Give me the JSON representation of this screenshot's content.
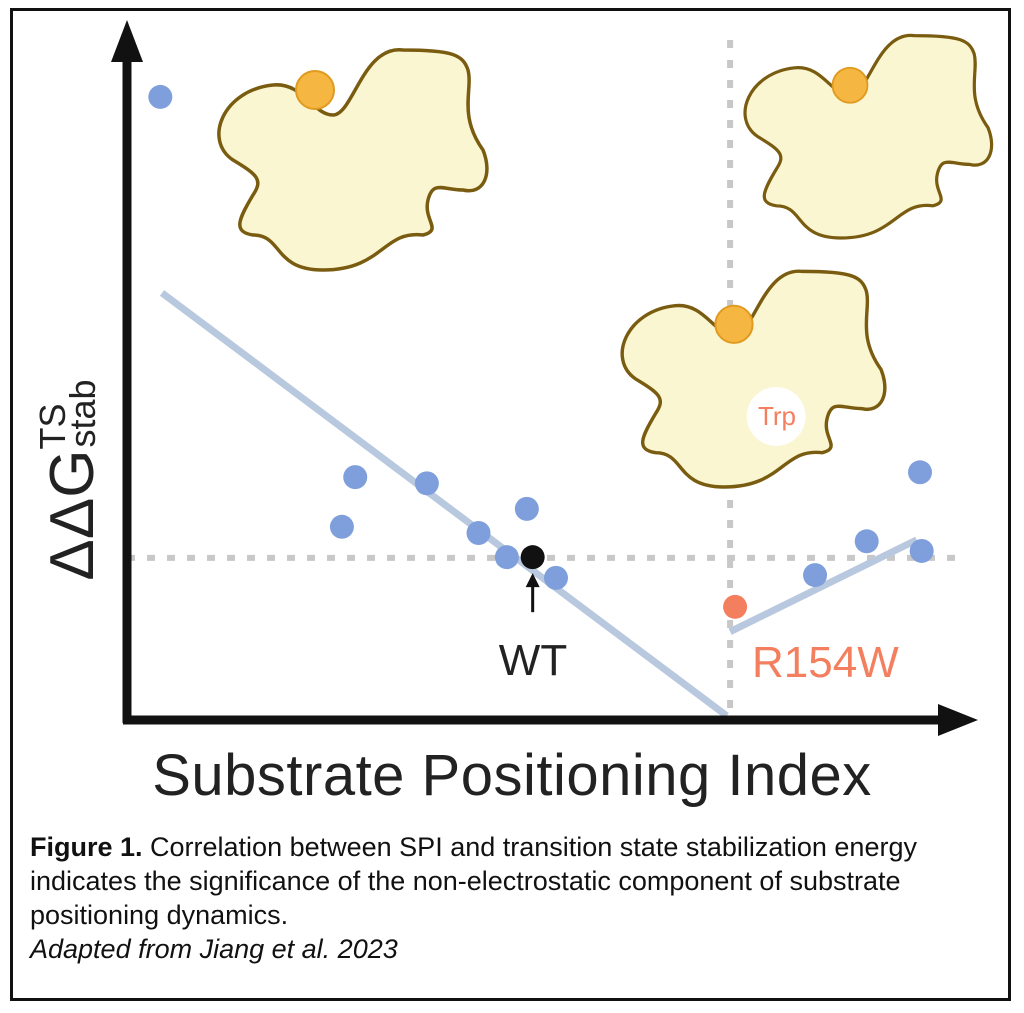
{
  "chart_data": {
    "type": "scatter",
    "xlabel": "Substrate Positioning Index",
    "ylabel": {
      "main": "ΔΔG",
      "superscript": "TS",
      "subscript": "stab"
    },
    "xlim": [
      0,
      100
    ],
    "ylim": [
      0,
      100
    ],
    "grid": false,
    "colors": {
      "points": "#7f9fdc",
      "wt": "#111111",
      "mutant": "#f37f5f",
      "fit": "#b8c8de",
      "reference": "#c8c8c8",
      "protein_fill": "#fbf6d2",
      "protein_stroke": "#7a5c10",
      "substrate": "#f5b642"
    },
    "points": [
      {
        "x": 4.0,
        "y": 90.3
      },
      {
        "x": 27.4,
        "y": 35.2
      },
      {
        "x": 25.8,
        "y": 28.0
      },
      {
        "x": 36.0,
        "y": 34.3
      },
      {
        "x": 42.2,
        "y": 27.1
      },
      {
        "x": 45.6,
        "y": 23.6
      },
      {
        "x": 48.0,
        "y": 30.6
      },
      {
        "x": 51.5,
        "y": 20.6
      },
      {
        "x": 82.6,
        "y": 21.0
      },
      {
        "x": 88.8,
        "y": 25.9
      },
      {
        "x": 95.2,
        "y": 35.9
      },
      {
        "x": 95.4,
        "y": 24.5
      }
    ],
    "highlighted": [
      {
        "label": "WT",
        "x": 48.7,
        "y": 23.6,
        "color": "#111111"
      },
      {
        "label": "R154W",
        "x": 73.0,
        "y": 16.4,
        "color": "#f37f5f"
      }
    ],
    "fit_lines": [
      {
        "x": [
          4.2,
          72.0
        ],
        "y": [
          61.9,
          0.6
        ]
      },
      {
        "x": [
          72.4,
          94.8
        ],
        "y": [
          12.8,
          26.1
        ]
      }
    ],
    "reference_lines": {
      "vertical_x": 72.4,
      "horizontal_y": 23.5
    },
    "annotations": {
      "trp_label": "Trp"
    }
  },
  "caption": {
    "label": "Figure 1.",
    "text": " Correlation between SPI and transition state stabilization energy indicates the significance of the non-electrostatic component of substrate positioning dynamics.",
    "credit": "Adapted from Jiang et al. 2023"
  }
}
